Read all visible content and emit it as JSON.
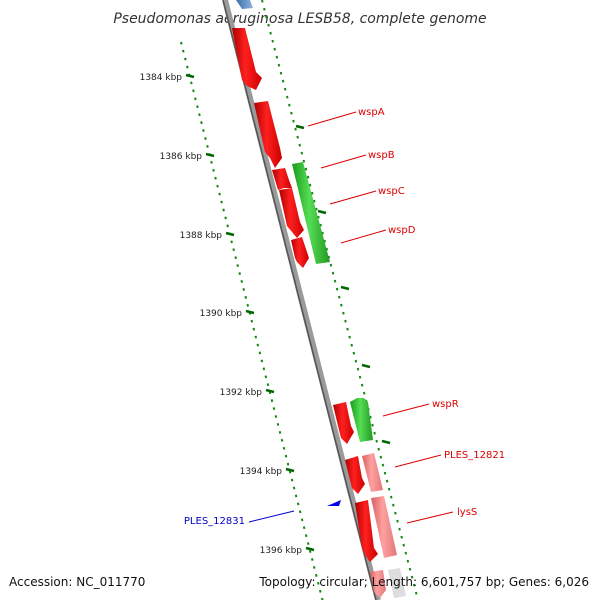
{
  "title": "Pseudomonas aeruginosa LESB58, complete genome",
  "footer": {
    "accession": "Accession: NC_011770",
    "summary": "Topology: circular; Length: 6,601,757 bp; Genes: 6,026"
  },
  "ticks": [
    "1384 kbp",
    "1386 kbp",
    "1388 kbp",
    "1390 kbp",
    "1392 kbp",
    "1394 kbp",
    "1396 kbp"
  ],
  "gene_labels": [
    {
      "name": "wspA",
      "color": "#dd0000"
    },
    {
      "name": "wspB",
      "color": "#dd0000"
    },
    {
      "name": "wspC",
      "color": "#dd0000"
    },
    {
      "name": "wspD",
      "color": "#dd0000"
    },
    {
      "name": "wspR",
      "color": "#dd0000"
    },
    {
      "name": "PLES_12821",
      "color": "#dd0000"
    },
    {
      "name": "lysS",
      "color": "#dd0000"
    },
    {
      "name": "PLES_12831",
      "color": "#0000cc"
    }
  ],
  "colors": {
    "forward_gene": "#ff0000",
    "reverse_gene": "#33cc33",
    "pseudo_gene": "#f08080",
    "rna_gene": "#0000ff",
    "backbone": "#888888",
    "dots": "#118811"
  }
}
